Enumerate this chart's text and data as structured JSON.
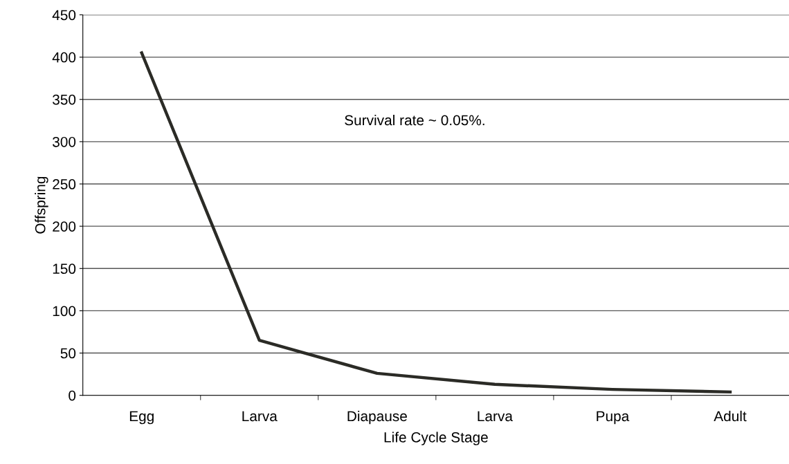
{
  "chart_data": {
    "type": "line",
    "xlabel": "Life Cycle Stage",
    "ylabel": "Offspring",
    "categories": [
      "Egg",
      "Larva",
      "Diapause",
      "Larva",
      "Pupa",
      "Adult"
    ],
    "series": [
      {
        "color": "#2b2b26",
        "values": [
          405,
          65,
          26,
          13,
          7,
          4
        ]
      }
    ],
    "ylim": [
      0,
      450
    ],
    "yticks": [
      0,
      50,
      100,
      150,
      200,
      250,
      300,
      350,
      400,
      450
    ],
    "grid": "y",
    "legend": false,
    "marker": "none",
    "line_style": "solid",
    "annotations": [
      "Survival rate ~ 0.05%."
    ]
  }
}
